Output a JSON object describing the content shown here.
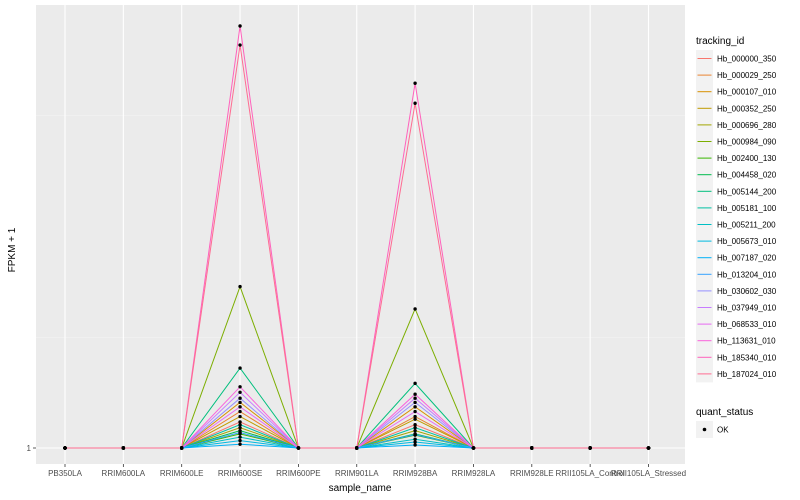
{
  "chart_data": {
    "type": "line",
    "title": "",
    "xlabel": "sample_name",
    "ylabel": "FPKM + 1",
    "y_scale": "log",
    "y_ticks": [
      "1"
    ],
    "grid": true,
    "legend_position": "right",
    "categories": [
      "PB350LA",
      "RRIM600LA",
      "RRIM600LE",
      "RRIM600SE",
      "RRIM600PE",
      "RRIM901LA",
      "RRIM928BA",
      "RRIM928LA",
      "RRIM928LE",
      "RRII105LA_Control",
      "RRII105LA_Stressed"
    ],
    "legend_title": "tracking_id",
    "series": [
      {
        "name": "Hb_000000_350",
        "color": "#F8766D",
        "values": [
          1,
          1,
          1,
          1.4,
          1,
          1,
          1.35,
          1,
          1,
          1,
          1
        ]
      },
      {
        "name": "Hb_000029_250",
        "color": "#EA8331",
        "values": [
          1,
          1,
          1,
          1.6,
          1,
          1,
          1.5,
          1,
          1,
          1,
          1
        ]
      },
      {
        "name": "Hb_000107_010",
        "color": "#D89000",
        "values": [
          1,
          1,
          1,
          1.8,
          1,
          1,
          1.7,
          1,
          1,
          1,
          1
        ]
      },
      {
        "name": "Hb_000352_250",
        "color": "#C09B00",
        "values": [
          1,
          1,
          1,
          1.5,
          1,
          1,
          1.45,
          1,
          1,
          1,
          1
        ]
      },
      {
        "name": "Hb_000696_280",
        "color": "#A3A500",
        "values": [
          1,
          1,
          1,
          1.3,
          1,
          1,
          1.25,
          1,
          1,
          1,
          1
        ]
      },
      {
        "name": "Hb_000984_090",
        "color": "#7CAE00",
        "values": [
          1,
          1,
          1,
          8,
          1,
          1,
          6,
          1,
          1,
          1,
          1
        ]
      },
      {
        "name": "Hb_002400_130",
        "color": "#39B600",
        "values": [
          1,
          1,
          1,
          1.2,
          1,
          1,
          1.18,
          1,
          1,
          1,
          1
        ]
      },
      {
        "name": "Hb_004458_020",
        "color": "#00BB4E",
        "values": [
          1,
          1,
          1,
          1.25,
          1,
          1,
          1.2,
          1,
          1,
          1,
          1
        ]
      },
      {
        "name": "Hb_005144_200",
        "color": "#00BF7D",
        "values": [
          1,
          1,
          1,
          2.8,
          1,
          1,
          2.3,
          1,
          1,
          1,
          1
        ]
      },
      {
        "name": "Hb_005181_100",
        "color": "#00C1A3",
        "values": [
          1,
          1,
          1,
          1.35,
          1,
          1,
          1.3,
          1,
          1,
          1,
          1
        ]
      },
      {
        "name": "Hb_005211_200",
        "color": "#00BFC4",
        "values": [
          1,
          1,
          1,
          1.15,
          1,
          1,
          1.12,
          1,
          1,
          1,
          1
        ]
      },
      {
        "name": "Hb_005673_010",
        "color": "#00BAE0",
        "values": [
          1,
          1,
          1,
          1.1,
          1,
          1,
          1.08,
          1,
          1,
          1,
          1
        ]
      },
      {
        "name": "Hb_007187_020",
        "color": "#00B0F6",
        "values": [
          1,
          1,
          1,
          1.05,
          1,
          1,
          1.04,
          1,
          1,
          1,
          1
        ]
      },
      {
        "name": "Hb_013204_010",
        "color": "#35A2FF",
        "values": [
          1,
          1,
          1,
          1.22,
          1,
          1,
          1.19,
          1,
          1,
          1,
          1
        ]
      },
      {
        "name": "Hb_030602_030",
        "color": "#9590FF",
        "values": [
          1,
          1,
          1,
          1.9,
          1,
          1,
          1.8,
          1,
          1,
          1,
          1
        ]
      },
      {
        "name": "Hb_037949_010",
        "color": "#C77CFF",
        "values": [
          1,
          1,
          1,
          2.05,
          1,
          1,
          1.9,
          1,
          1,
          1,
          1
        ]
      },
      {
        "name": "Hb_068533_010",
        "color": "#E76BF3",
        "values": [
          1,
          1,
          1,
          1.7,
          1,
          1,
          1.6,
          1,
          1,
          1,
          1
        ]
      },
      {
        "name": "Hb_113631_010",
        "color": "#FA62DB",
        "values": [
          1,
          1,
          1,
          2.2,
          1,
          1,
          2.0,
          1,
          1,
          1,
          1
        ]
      },
      {
        "name": "Hb_185340_010",
        "color": "#FF62BC",
        "values": [
          1,
          1,
          1,
          230,
          1,
          1,
          110,
          1,
          1,
          1,
          1
        ]
      },
      {
        "name": "Hb_187024_010",
        "color": "#FF6C91",
        "values": [
          1,
          1,
          1,
          180,
          1,
          1,
          85,
          1,
          1,
          1,
          1
        ]
      }
    ],
    "shape_legend": {
      "title": "quant_status",
      "entries": [
        "OK"
      ]
    }
  }
}
